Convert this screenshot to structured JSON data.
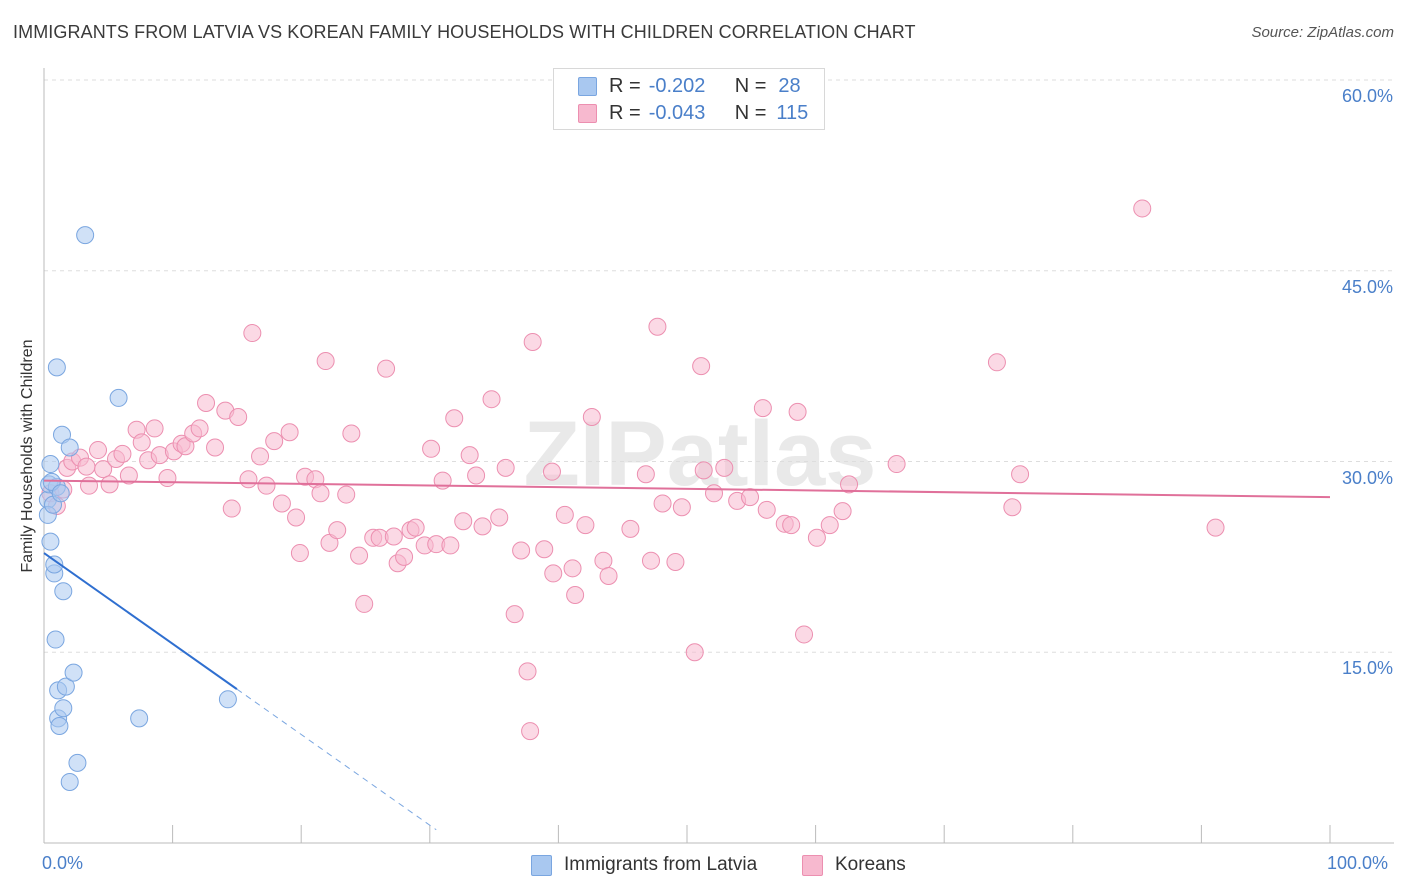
{
  "title": "IMMIGRANTS FROM LATVIA VS KOREAN FAMILY HOUSEHOLDS WITH CHILDREN CORRELATION CHART",
  "source": "Source: ZipAtlas.com",
  "watermark": "ZIPatlas",
  "legend_top": {
    "rows": [
      {
        "r_label": "R =",
        "r_value": "-0.202",
        "n_label": "N =",
        "n_value": "28",
        "color": "#a9c8f0",
        "border": "#7aa6e0"
      },
      {
        "r_label": "R =",
        "r_value": "-0.043",
        "n_label": "N =",
        "n_value": "115",
        "color": "#f7b9cf",
        "border": "#ec8fb0"
      }
    ]
  },
  "legend_bottom": [
    {
      "label": "Immigrants from Latvia",
      "color": "#a9c8f0",
      "border": "#7aa6e0"
    },
    {
      "label": "Koreans",
      "color": "#f7b9cf",
      "border": "#ec8fb0"
    }
  ],
  "chart_data": {
    "type": "scatter",
    "title": "IMMIGRANTS FROM LATVIA VS KOREAN FAMILY HOUSEHOLDS WITH CHILDREN CORRELATION CHART",
    "xlabel": "",
    "ylabel": "Family Households with Children",
    "xlim": [
      0,
      100
    ],
    "ylim": [
      0,
      60
    ],
    "x_tick_labels": [
      "0.0%",
      "100.0%"
    ],
    "y_ticks": [
      15,
      30,
      45,
      60
    ],
    "y_tick_labels": [
      "15.0%",
      "30.0%",
      "45.0%",
      "60.0%"
    ],
    "grid": true,
    "series": [
      {
        "name": "Immigrants from Latvia",
        "color": "#7aa6e0",
        "fill": "#a9c8f0",
        "R": -0.202,
        "N": 28,
        "trend": {
          "x0": 0,
          "y0": 22.8,
          "x1": 15,
          "y1": 12.1,
          "dash_to_x": 30.5
        },
        "points": [
          [
            0.3,
            27.0
          ],
          [
            0.3,
            25.8
          ],
          [
            0.4,
            28.2
          ],
          [
            0.5,
            29.8
          ],
          [
            0.5,
            23.7
          ],
          [
            0.8,
            21.2
          ],
          [
            0.8,
            21.9
          ],
          [
            0.9,
            16.0
          ],
          [
            1.0,
            28.0
          ],
          [
            1.0,
            37.4
          ],
          [
            1.1,
            12.0
          ],
          [
            1.1,
            9.8
          ],
          [
            1.2,
            9.2
          ],
          [
            1.4,
            32.1
          ],
          [
            1.5,
            19.8
          ],
          [
            1.5,
            10.6
          ],
          [
            1.7,
            12.3
          ],
          [
            2.0,
            4.8
          ],
          [
            2.0,
            31.1
          ],
          [
            2.3,
            13.4
          ],
          [
            2.6,
            6.3
          ],
          [
            3.2,
            47.8
          ],
          [
            5.8,
            35.0
          ],
          [
            7.4,
            9.8
          ],
          [
            14.3,
            11.3
          ],
          [
            0.7,
            26.6
          ],
          [
            0.6,
            28.4
          ],
          [
            1.3,
            27.5
          ]
        ]
      },
      {
        "name": "Koreans",
        "color": "#ec8fb0",
        "fill": "#f7b9cf",
        "R": -0.043,
        "N": 115,
        "trend": {
          "x0": 0,
          "y0": 28.5,
          "x1": 100,
          "y1": 27.2
        },
        "points": [
          [
            0.5,
            27.5
          ],
          [
            1.0,
            26.5
          ],
          [
            1.5,
            27.8
          ],
          [
            1.8,
            29.5
          ],
          [
            2.2,
            30.0
          ],
          [
            2.8,
            30.3
          ],
          [
            3.3,
            29.6
          ],
          [
            3.5,
            28.1
          ],
          [
            4.2,
            30.9
          ],
          [
            4.6,
            29.4
          ],
          [
            5.1,
            28.2
          ],
          [
            5.6,
            30.2
          ],
          [
            6.1,
            30.6
          ],
          [
            6.6,
            28.9
          ],
          [
            7.2,
            32.5
          ],
          [
            7.6,
            31.5
          ],
          [
            8.1,
            30.1
          ],
          [
            8.6,
            32.6
          ],
          [
            9.0,
            30.5
          ],
          [
            9.6,
            28.7
          ],
          [
            10.1,
            30.8
          ],
          [
            10.7,
            31.4
          ],
          [
            11.0,
            31.2
          ],
          [
            11.6,
            32.2
          ],
          [
            12.1,
            32.6
          ],
          [
            12.6,
            34.6
          ],
          [
            13.3,
            31.1
          ],
          [
            14.1,
            34.0
          ],
          [
            14.6,
            26.3
          ],
          [
            15.1,
            33.5
          ],
          [
            15.9,
            28.6
          ],
          [
            16.2,
            40.1
          ],
          [
            16.8,
            30.4
          ],
          [
            17.3,
            28.1
          ],
          [
            17.9,
            31.6
          ],
          [
            18.5,
            26.7
          ],
          [
            19.1,
            32.3
          ],
          [
            19.6,
            25.6
          ],
          [
            19.9,
            22.8
          ],
          [
            20.3,
            28.8
          ],
          [
            21.1,
            28.6
          ],
          [
            21.5,
            27.5
          ],
          [
            21.9,
            37.9
          ],
          [
            22.2,
            23.6
          ],
          [
            22.8,
            24.6
          ],
          [
            23.5,
            27.4
          ],
          [
            23.9,
            32.2
          ],
          [
            24.5,
            22.6
          ],
          [
            24.9,
            18.8
          ],
          [
            25.6,
            24.0
          ],
          [
            26.1,
            24.0
          ],
          [
            26.6,
            37.3
          ],
          [
            27.2,
            24.1
          ],
          [
            27.5,
            22.0
          ],
          [
            28.0,
            22.5
          ],
          [
            28.5,
            24.6
          ],
          [
            28.9,
            24.8
          ],
          [
            29.6,
            23.4
          ],
          [
            30.1,
            31.0
          ],
          [
            30.5,
            23.5
          ],
          [
            31.0,
            28.5
          ],
          [
            31.6,
            23.4
          ],
          [
            31.9,
            33.4
          ],
          [
            32.6,
            25.3
          ],
          [
            33.1,
            30.5
          ],
          [
            33.6,
            28.9
          ],
          [
            34.1,
            24.9
          ],
          [
            34.8,
            34.9
          ],
          [
            35.4,
            25.6
          ],
          [
            35.9,
            29.5
          ],
          [
            36.6,
            18.0
          ],
          [
            37.1,
            23.0
          ],
          [
            37.6,
            13.5
          ],
          [
            37.8,
            8.8
          ],
          [
            38.0,
            39.4
          ],
          [
            38.9,
            23.1
          ],
          [
            39.5,
            29.2
          ],
          [
            39.6,
            21.2
          ],
          [
            40.5,
            25.8
          ],
          [
            41.1,
            21.6
          ],
          [
            41.3,
            19.5
          ],
          [
            42.1,
            25.0
          ],
          [
            42.6,
            33.5
          ],
          [
            43.5,
            22.2
          ],
          [
            43.9,
            21.0
          ],
          [
            45.6,
            24.7
          ],
          [
            46.8,
            29.0
          ],
          [
            47.2,
            22.2
          ],
          [
            47.7,
            40.6
          ],
          [
            48.1,
            26.7
          ],
          [
            49.1,
            22.1
          ],
          [
            49.6,
            26.4
          ],
          [
            50.6,
            15.0
          ],
          [
            51.1,
            37.5
          ],
          [
            51.3,
            29.3
          ],
          [
            52.1,
            27.5
          ],
          [
            52.9,
            29.5
          ],
          [
            53.9,
            26.9
          ],
          [
            54.9,
            27.2
          ],
          [
            55.9,
            34.2
          ],
          [
            56.2,
            26.2
          ],
          [
            57.6,
            25.1
          ],
          [
            58.1,
            25.0
          ],
          [
            58.6,
            33.9
          ],
          [
            59.1,
            16.4
          ],
          [
            60.1,
            24.0
          ],
          [
            61.1,
            25.0
          ],
          [
            62.1,
            26.1
          ],
          [
            62.6,
            28.2
          ],
          [
            66.3,
            29.8
          ],
          [
            74.1,
            37.8
          ],
          [
            75.3,
            26.4
          ],
          [
            75.9,
            29.0
          ],
          [
            85.4,
            49.9
          ],
          [
            91.1,
            24.8
          ]
        ]
      }
    ]
  }
}
